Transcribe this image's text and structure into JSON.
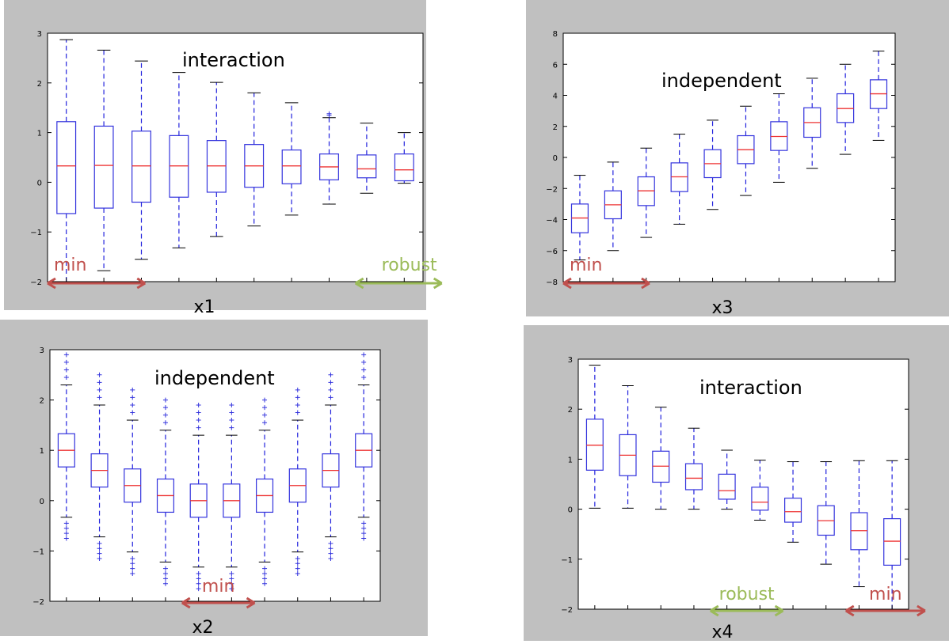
{
  "colors": {
    "box": "#3333dd",
    "median": "#ee3333",
    "whisker": "#2222dd",
    "cap": "#000000",
    "outlier": "#3333dd",
    "panel_bg": "#c0c0c0",
    "plot_bg": "#ffffff",
    "min_marker": "#c0504d",
    "robust_marker": "#9bbb59"
  },
  "chart_data": [
    {
      "type": "box",
      "annotation": "interaction",
      "xlabel": "x1",
      "ylim": [
        -2,
        3
      ],
      "yticks": [
        -2,
        -1,
        0,
        1,
        2,
        3
      ],
      "boxes": [
        {
          "whislo": -2.0,
          "q1": -0.63,
          "med": 0.33,
          "q3": 1.22,
          "whishi": 2.87,
          "fliers": []
        },
        {
          "whislo": -1.78,
          "q1": -0.52,
          "med": 0.34,
          "q3": 1.13,
          "whishi": 2.66,
          "fliers": []
        },
        {
          "whislo": -1.55,
          "q1": -0.4,
          "med": 0.33,
          "q3": 1.03,
          "whishi": 2.44,
          "fliers": []
        },
        {
          "whislo": -1.32,
          "q1": -0.3,
          "med": 0.33,
          "q3": 0.94,
          "whishi": 2.21,
          "fliers": []
        },
        {
          "whislo": -1.09,
          "q1": -0.2,
          "med": 0.33,
          "q3": 0.84,
          "whishi": 2.01,
          "fliers": []
        },
        {
          "whislo": -0.88,
          "q1": -0.1,
          "med": 0.33,
          "q3": 0.76,
          "whishi": 1.8,
          "fliers": []
        },
        {
          "whislo": -0.66,
          "q1": -0.03,
          "med": 0.33,
          "q3": 0.65,
          "whishi": 1.6,
          "fliers": []
        },
        {
          "whislo": -0.44,
          "q1": 0.05,
          "med": 0.31,
          "q3": 0.57,
          "whishi": 1.3,
          "fliers": [
            1.35,
            1.38
          ]
        },
        {
          "whislo": -0.22,
          "q1": 0.09,
          "med": 0.27,
          "q3": 0.55,
          "whishi": 1.19,
          "fliers": []
        },
        {
          "whislo": -0.02,
          "q1": 0.03,
          "med": 0.25,
          "q3": 0.57,
          "whishi": 1.0,
          "fliers": []
        }
      ],
      "markers": [
        {
          "label": "min",
          "color": "min_marker",
          "from": 0.5,
          "to": 3.1,
          "side": "left"
        },
        {
          "label": "robust",
          "color": "robust_marker",
          "from": 8.7,
          "to": 11.0,
          "side": "right"
        }
      ]
    },
    {
      "type": "box",
      "annotation": "independent",
      "xlabel": "x3",
      "ylim": [
        -8,
        8
      ],
      "yticks": [
        -8,
        -6,
        -4,
        -2,
        0,
        2,
        4,
        6,
        8
      ],
      "boxes": [
        {
          "whislo": -6.6,
          "q1": -4.85,
          "med": -3.9,
          "q3": -3.0,
          "whishi": -1.15,
          "fliers": []
        },
        {
          "whislo": -6.0,
          "q1": -3.95,
          "med": -3.05,
          "q3": -2.15,
          "whishi": -0.3,
          "fliers": []
        },
        {
          "whislo": -5.15,
          "q1": -3.1,
          "med": -2.15,
          "q3": -1.25,
          "whishi": 0.6,
          "fliers": []
        },
        {
          "whislo": -4.3,
          "q1": -2.2,
          "med": -1.25,
          "q3": -0.35,
          "whishi": 1.5,
          "fliers": []
        },
        {
          "whislo": -3.35,
          "q1": -1.3,
          "med": -0.4,
          "q3": 0.5,
          "whishi": 2.4,
          "fliers": []
        },
        {
          "whislo": -2.45,
          "q1": -0.4,
          "med": 0.5,
          "q3": 1.4,
          "whishi": 3.3,
          "fliers": []
        },
        {
          "whislo": -1.6,
          "q1": 0.45,
          "med": 1.35,
          "q3": 2.3,
          "whishi": 4.1,
          "fliers": []
        },
        {
          "whislo": -0.7,
          "q1": 1.3,
          "med": 2.25,
          "q3": 3.2,
          "whishi": 5.1,
          "fliers": []
        },
        {
          "whislo": 0.2,
          "q1": 2.25,
          "med": 3.15,
          "q3": 4.1,
          "whishi": 6.0,
          "fliers": []
        },
        {
          "whislo": 1.1,
          "q1": 3.15,
          "med": 4.1,
          "q3": 5.0,
          "whishi": 6.85,
          "fliers": []
        }
      ],
      "markers": [
        {
          "label": "min",
          "color": "min_marker",
          "from": 0.5,
          "to": 3.1,
          "side": "left"
        }
      ]
    },
    {
      "type": "box",
      "annotation": "independent",
      "xlabel": "x2",
      "ylim": [
        -2,
        3
      ],
      "yticks": [
        -2,
        -1,
        0,
        1,
        2,
        3
      ],
      "boxes": [
        {
          "whislo": -0.33,
          "q1": 0.67,
          "med": 1.0,
          "q3": 1.33,
          "whishi": 2.3,
          "fliers": [
            -0.45,
            -0.55,
            -0.65,
            -0.75,
            2.45,
            2.6,
            2.75,
            2.9
          ]
        },
        {
          "whislo": -0.72,
          "q1": 0.27,
          "med": 0.6,
          "q3": 0.93,
          "whishi": 1.9,
          "fliers": [
            -0.85,
            -0.95,
            -1.05,
            -1.15,
            2.05,
            2.2,
            2.35,
            2.5
          ]
        },
        {
          "whislo": -1.02,
          "q1": -0.03,
          "med": 0.3,
          "q3": 0.63,
          "whishi": 1.6,
          "fliers": [
            -1.15,
            -1.25,
            -1.35,
            -1.45,
            1.75,
            1.9,
            2.05,
            2.2
          ]
        },
        {
          "whislo": -1.22,
          "q1": -0.23,
          "med": 0.1,
          "q3": 0.43,
          "whishi": 1.4,
          "fliers": [
            -1.35,
            -1.45,
            -1.55,
            -1.65,
            1.55,
            1.7,
            1.85,
            2.0
          ]
        },
        {
          "whislo": -1.32,
          "q1": -0.33,
          "med": 0.0,
          "q3": 0.33,
          "whishi": 1.3,
          "fliers": [
            -1.45,
            -1.55,
            -1.65,
            -1.75,
            1.45,
            1.6,
            1.75,
            1.9
          ]
        },
        {
          "whislo": -1.32,
          "q1": -0.33,
          "med": 0.0,
          "q3": 0.33,
          "whishi": 1.3,
          "fliers": [
            -1.45,
            -1.55,
            -1.65,
            -1.75,
            1.45,
            1.6,
            1.75,
            1.9
          ]
        },
        {
          "whislo": -1.22,
          "q1": -0.23,
          "med": 0.1,
          "q3": 0.43,
          "whishi": 1.4,
          "fliers": [
            -1.35,
            -1.45,
            -1.55,
            -1.65,
            1.55,
            1.7,
            1.85,
            2.0
          ]
        },
        {
          "whislo": -1.02,
          "q1": -0.03,
          "med": 0.3,
          "q3": 0.63,
          "whishi": 1.6,
          "fliers": [
            -1.15,
            -1.25,
            -1.35,
            -1.45,
            1.75,
            1.9,
            2.05,
            2.2
          ]
        },
        {
          "whislo": -0.72,
          "q1": 0.27,
          "med": 0.6,
          "q3": 0.93,
          "whishi": 1.9,
          "fliers": [
            -0.85,
            -0.95,
            -1.05,
            -1.15,
            2.05,
            2.2,
            2.35,
            2.5
          ]
        },
        {
          "whislo": -0.33,
          "q1": 0.67,
          "med": 1.0,
          "q3": 1.33,
          "whishi": 2.3,
          "fliers": [
            -0.45,
            -0.55,
            -0.65,
            -0.75,
            2.45,
            2.6,
            2.75,
            2.9
          ]
        }
      ],
      "markers": [
        {
          "label": "min",
          "color": "min_marker",
          "from": 4.5,
          "to": 6.7,
          "side": "top"
        }
      ]
    },
    {
      "type": "box",
      "annotation": "interaction",
      "xlabel": "x4",
      "ylim": [
        -2,
        3
      ],
      "yticks": [
        -2,
        -1,
        0,
        1,
        2,
        3
      ],
      "boxes": [
        {
          "whislo": 0.02,
          "q1": 0.78,
          "med": 1.28,
          "q3": 1.8,
          "whishi": 2.88,
          "fliers": []
        },
        {
          "whislo": 0.02,
          "q1": 0.67,
          "med": 1.08,
          "q3": 1.49,
          "whishi": 2.47,
          "fliers": []
        },
        {
          "whislo": 0.0,
          "q1": 0.54,
          "med": 0.86,
          "q3": 1.16,
          "whishi": 2.04,
          "fliers": []
        },
        {
          "whislo": 0.0,
          "q1": 0.39,
          "med": 0.62,
          "q3": 0.91,
          "whishi": 1.62,
          "fliers": []
        },
        {
          "whislo": 0.0,
          "q1": 0.2,
          "med": 0.37,
          "q3": 0.7,
          "whishi": 1.18,
          "fliers": []
        },
        {
          "whislo": -0.22,
          "q1": -0.02,
          "med": 0.14,
          "q3": 0.44,
          "whishi": 0.98,
          "fliers": []
        },
        {
          "whislo": -0.66,
          "q1": -0.26,
          "med": -0.05,
          "q3": 0.22,
          "whishi": 0.95,
          "fliers": []
        },
        {
          "whislo": -1.1,
          "q1": -0.52,
          "med": -0.23,
          "q3": 0.07,
          "whishi": 0.95,
          "fliers": []
        },
        {
          "whislo": -1.55,
          "q1": -0.81,
          "med": -0.43,
          "q3": -0.07,
          "whishi": 0.97,
          "fliers": []
        },
        {
          "whislo": -2.0,
          "q1": -1.12,
          "med": -0.64,
          "q3": -0.19,
          "whishi": 0.97,
          "fliers": []
        }
      ],
      "markers": [
        {
          "label": "robust",
          "color": "robust_marker",
          "from": 4.5,
          "to": 6.7,
          "side": "top"
        },
        {
          "label": "min",
          "color": "min_marker",
          "from": 8.6,
          "to": 11.0,
          "side": "top"
        }
      ]
    }
  ]
}
